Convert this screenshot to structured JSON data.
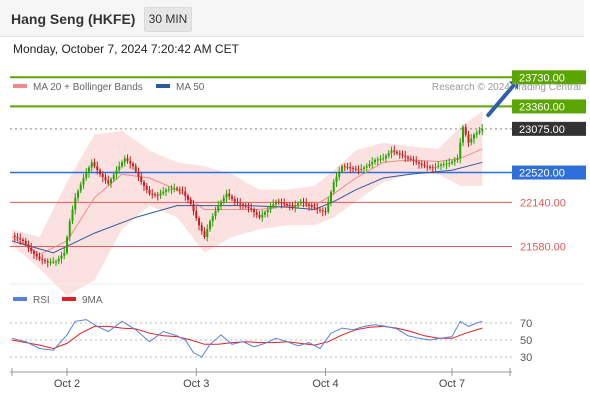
{
  "header": {
    "title": "Hang Seng (HKFE)",
    "timeframe": "30 MIN"
  },
  "datetime": "Monday, October 7, 2024 7:20:42 AM CET",
  "credit": "Research © 2024 Trading Central",
  "colors": {
    "resistance_green": "#5aa500",
    "pivot_blue": "#2f6fdc",
    "support_red": "#e85a5a",
    "price_dark": "#333333",
    "candle_up": "#27a600",
    "candle_down": "#c82020",
    "bollinger_band": "#fbdcdc",
    "ma20": "#f08a8a",
    "ma50": "#2e5aa0",
    "rsi": "#5a7fdc",
    "rsi_ma": "#e02020",
    "arrow": "#2f5da8"
  },
  "chart_data": [
    {
      "type": "candlestick",
      "legend": [
        {
          "name": "MA 20 + Bollinger Bands",
          "color": "#f08a8a"
        },
        {
          "name": "MA 50",
          "color": "#2e5aa0"
        }
      ],
      "x_ticks": [
        "Oct 2",
        "Oct 3",
        "Oct 4",
        "Oct 7"
      ],
      "ylim": [
        20900,
        23950
      ],
      "last_price": 23075,
      "levels": [
        {
          "label": "23730.00",
          "value": 23730,
          "kind": "resistance"
        },
        {
          "label": "23360.00",
          "value": 23360,
          "kind": "resistance"
        },
        {
          "label": "23075.00",
          "value": 23075,
          "kind": "price"
        },
        {
          "label": "22520.00",
          "value": 22520,
          "kind": "pivot"
        },
        {
          "label": "22140.00",
          "value": 22140,
          "kind": "support"
        },
        {
          "label": "21580.00",
          "value": 21580,
          "kind": "support"
        }
      ],
      "close_path": [
        [
          0,
          21720
        ],
        [
          4,
          21650
        ],
        [
          7,
          21520
        ],
        [
          10,
          21420
        ],
        [
          13,
          21380
        ],
        [
          16,
          21390
        ],
        [
          19,
          21500
        ],
        [
          21,
          21900
        ],
        [
          23,
          22200
        ],
        [
          26,
          22450
        ],
        [
          29,
          22650
        ],
        [
          32,
          22500
        ],
        [
          35,
          22380
        ],
        [
          38,
          22550
        ],
        [
          41,
          22700
        ],
        [
          44,
          22600
        ],
        [
          47,
          22400
        ],
        [
          50,
          22250
        ],
        [
          53,
          22230
        ],
        [
          56,
          22300
        ],
        [
          59,
          22320
        ],
        [
          62,
          22280
        ],
        [
          65,
          22120
        ],
        [
          68,
          21850
        ],
        [
          70,
          21700
        ],
        [
          72,
          21900
        ],
        [
          75,
          22100
        ],
        [
          78,
          22250
        ],
        [
          81,
          22150
        ],
        [
          84,
          22100
        ],
        [
          87,
          22050
        ],
        [
          90,
          21950
        ],
        [
          93,
          22050
        ],
        [
          96,
          22150
        ],
        [
          99,
          22120
        ],
        [
          102,
          22080
        ],
        [
          105,
          22150
        ],
        [
          108,
          22100
        ],
        [
          111,
          22050
        ],
        [
          114,
          22020
        ],
        [
          117,
          22400
        ],
        [
          120,
          22600
        ],
        [
          123,
          22580
        ],
        [
          126,
          22550
        ],
        [
          129,
          22600
        ],
        [
          132,
          22680
        ],
        [
          135,
          22700
        ],
        [
          138,
          22800
        ],
        [
          141,
          22750
        ],
        [
          144,
          22700
        ],
        [
          147,
          22650
        ],
        [
          150,
          22600
        ],
        [
          153,
          22580
        ],
        [
          156,
          22620
        ],
        [
          159,
          22640
        ],
        [
          162,
          22700
        ],
        [
          164,
          23100
        ],
        [
          166,
          22900
        ],
        [
          168,
          23000
        ],
        [
          171,
          23075
        ]
      ],
      "ma20_path": [
        [
          0,
          21700
        ],
        [
          10,
          21480
        ],
        [
          20,
          21650
        ],
        [
          30,
          22200
        ],
        [
          40,
          22500
        ],
        [
          50,
          22450
        ],
        [
          60,
          22300
        ],
        [
          70,
          22050
        ],
        [
          80,
          22050
        ],
        [
          90,
          22050
        ],
        [
          100,
          22100
        ],
        [
          110,
          22100
        ],
        [
          117,
          22250
        ],
        [
          125,
          22450
        ],
        [
          135,
          22650
        ],
        [
          145,
          22680
        ],
        [
          155,
          22660
        ],
        [
          163,
          22700
        ],
        [
          171,
          22820
        ]
      ],
      "ma50_path": [
        [
          0,
          21650
        ],
        [
          15,
          21500
        ],
        [
          30,
          21750
        ],
        [
          45,
          21950
        ],
        [
          60,
          22100
        ],
        [
          72,
          22100
        ],
        [
          85,
          22100
        ],
        [
          100,
          22080
        ],
        [
          110,
          22050
        ],
        [
          117,
          22150
        ],
        [
          125,
          22300
        ],
        [
          135,
          22450
        ],
        [
          145,
          22500
        ],
        [
          160,
          22550
        ],
        [
          171,
          22650
        ]
      ],
      "bollinger_upper": [
        [
          0,
          21800
        ],
        [
          10,
          21700
        ],
        [
          20,
          22400
        ],
        [
          30,
          23000
        ],
        [
          40,
          23050
        ],
        [
          50,
          22800
        ],
        [
          60,
          22650
        ],
        [
          70,
          22600
        ],
        [
          80,
          22500
        ],
        [
          90,
          22300
        ],
        [
          100,
          22300
        ],
        [
          110,
          22350
        ],
        [
          117,
          22550
        ],
        [
          125,
          22800
        ],
        [
          135,
          22900
        ],
        [
          145,
          22850
        ],
        [
          155,
          22820
        ],
        [
          163,
          23100
        ],
        [
          171,
          23300
        ]
      ],
      "bollinger_lower": [
        [
          0,
          21600
        ],
        [
          10,
          21300
        ],
        [
          20,
          20950
        ],
        [
          30,
          21150
        ],
        [
          40,
          21800
        ],
        [
          50,
          22100
        ],
        [
          60,
          21950
        ],
        [
          70,
          21500
        ],
        [
          80,
          21700
        ],
        [
          90,
          21800
        ],
        [
          100,
          21850
        ],
        [
          110,
          21850
        ],
        [
          117,
          21950
        ],
        [
          125,
          22150
        ],
        [
          135,
          22400
        ],
        [
          145,
          22500
        ],
        [
          155,
          22500
        ],
        [
          163,
          22350
        ],
        [
          171,
          22350
        ]
      ],
      "forecast_arrow": {
        "from": [
          171,
          23250
        ],
        "to": [
          182,
          23700
        ]
      }
    },
    {
      "type": "line",
      "legend": [
        {
          "name": "RSI",
          "color": "#5a7fdc"
        },
        {
          "name": "9MA",
          "color": "#e02020"
        }
      ],
      "y_ticks": [
        70,
        50,
        30
      ],
      "ylim": [
        10,
        90
      ],
      "rsi": [
        [
          0,
          52
        ],
        [
          5,
          48
        ],
        [
          10,
          40
        ],
        [
          15,
          38
        ],
        [
          20,
          56
        ],
        [
          23,
          72
        ],
        [
          27,
          74
        ],
        [
          31,
          66
        ],
        [
          35,
          60
        ],
        [
          40,
          72
        ],
        [
          45,
          62
        ],
        [
          50,
          48
        ],
        [
          55,
          60
        ],
        [
          60,
          55
        ],
        [
          63,
          50
        ],
        [
          66,
          35
        ],
        [
          69,
          30
        ],
        [
          72,
          45
        ],
        [
          76,
          56
        ],
        [
          80,
          45
        ],
        [
          84,
          48
        ],
        [
          88,
          42
        ],
        [
          92,
          46
        ],
        [
          96,
          52
        ],
        [
          100,
          48
        ],
        [
          104,
          43
        ],
        [
          108,
          47
        ],
        [
          112,
          40
        ],
        [
          116,
          58
        ],
        [
          120,
          64
        ],
        [
          124,
          62
        ],
        [
          128,
          66
        ],
        [
          132,
          68
        ],
        [
          136,
          66
        ],
        [
          140,
          63
        ],
        [
          144,
          55
        ],
        [
          148,
          52
        ],
        [
          152,
          50
        ],
        [
          156,
          52
        ],
        [
          160,
          54
        ],
        [
          163,
          72
        ],
        [
          166,
          66
        ],
        [
          169,
          70
        ],
        [
          171,
          72
        ]
      ],
      "rsi_ma": [
        [
          0,
          50
        ],
        [
          10,
          44
        ],
        [
          15,
          40
        ],
        [
          20,
          46
        ],
        [
          25,
          58
        ],
        [
          30,
          66
        ],
        [
          35,
          66
        ],
        [
          40,
          64
        ],
        [
          45,
          63
        ],
        [
          50,
          58
        ],
        [
          55,
          55
        ],
        [
          60,
          54
        ],
        [
          65,
          50
        ],
        [
          70,
          45
        ],
        [
          75,
          45
        ],
        [
          80,
          47
        ],
        [
          85,
          48
        ],
        [
          90,
          47
        ],
        [
          95,
          47
        ],
        [
          100,
          48
        ],
        [
          105,
          46
        ],
        [
          110,
          44
        ],
        [
          115,
          48
        ],
        [
          120,
          56
        ],
        [
          125,
          62
        ],
        [
          130,
          65
        ],
        [
          135,
          66
        ],
        [
          140,
          64
        ],
        [
          145,
          60
        ],
        [
          150,
          55
        ],
        [
          155,
          52
        ],
        [
          160,
          52
        ],
        [
          165,
          58
        ],
        [
          171,
          64
        ]
      ]
    }
  ]
}
